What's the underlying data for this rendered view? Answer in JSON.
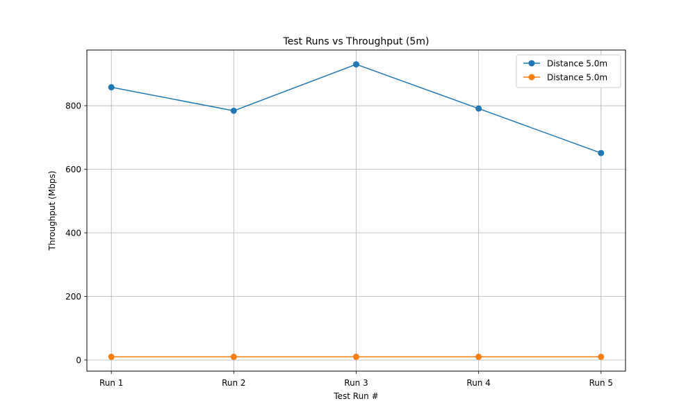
{
  "chart_data": {
    "type": "line",
    "title": "Test Runs vs Throughput (5m)",
    "xlabel": "Test Run #",
    "ylabel": "Throughput (Mbps)",
    "categories": [
      "Run 1",
      "Run 2",
      "Run 3",
      "Run 4",
      "Run 5"
    ],
    "yticks": [
      0,
      200,
      400,
      600,
      800
    ],
    "ylim": [
      -35,
      975
    ],
    "grid": true,
    "legend_position": "top-right",
    "series": [
      {
        "name": "Distance 5.0m",
        "color": "#1f77b4",
        "values": [
          858,
          784,
          930,
          791,
          651
        ]
      },
      {
        "name": "Distance 5.0m",
        "color": "#ff7f0e",
        "values": [
          10,
          10,
          10,
          10,
          10
        ]
      }
    ]
  }
}
